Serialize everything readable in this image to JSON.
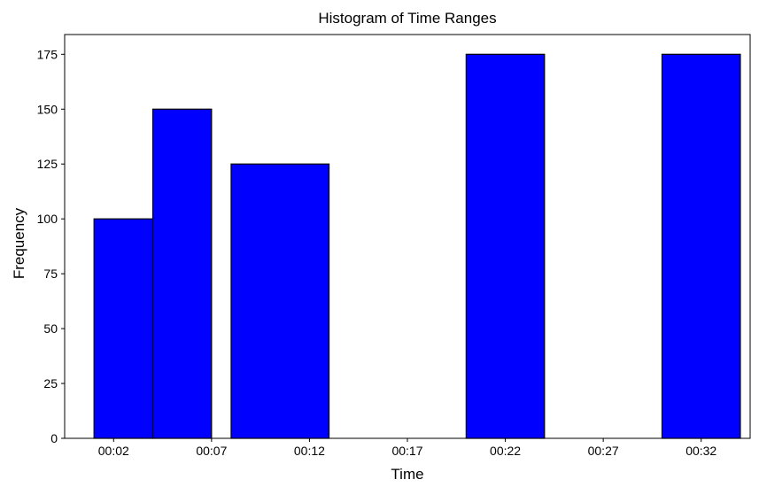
{
  "chart_data": {
    "type": "bar",
    "title": "Histogram of Time Ranges",
    "xlabel": "Time",
    "ylabel": "Frequency",
    "x_ticks": [
      {
        "label": "00:02",
        "value": 2
      },
      {
        "label": "00:07",
        "value": 7
      },
      {
        "label": "00:12",
        "value": 12
      },
      {
        "label": "00:17",
        "value": 17
      },
      {
        "label": "00:22",
        "value": 22
      },
      {
        "label": "00:27",
        "value": 27
      },
      {
        "label": "00:32",
        "value": 32
      }
    ],
    "y_ticks": [
      0,
      25,
      50,
      75,
      100,
      125,
      150,
      175
    ],
    "xlim": [
      -0.5,
      34.5
    ],
    "ylim": [
      0,
      184
    ],
    "bars": [
      {
        "start": 1,
        "end": 4,
        "value": 100
      },
      {
        "start": 4,
        "end": 7,
        "value": 150
      },
      {
        "start": 8,
        "end": 13,
        "value": 125
      },
      {
        "start": 20,
        "end": 24,
        "value": 175
      },
      {
        "start": 30,
        "end": 34,
        "value": 175
      }
    ],
    "colors": {
      "bar_fill": "#0000ff",
      "bar_edge": "#000000"
    },
    "grid": false
  }
}
